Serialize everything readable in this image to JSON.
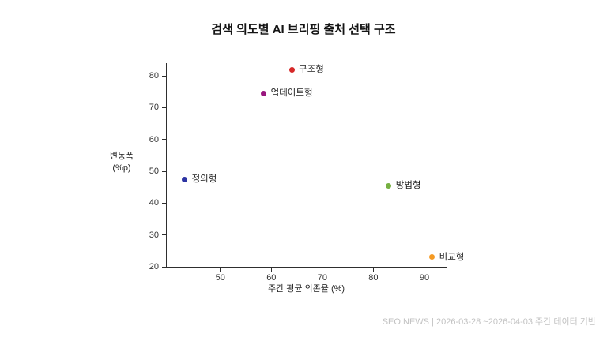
{
  "chart_data": {
    "type": "scatter",
    "title": "검색 의도별 AI 브리핑 출처 선택 구조",
    "xlabel": "주간 평균 의존율 (%)",
    "ylabel_lines": [
      "변동폭",
      "(%p)"
    ],
    "xlim": [
      39.5,
      94.5
    ],
    "ylim": [
      20,
      84
    ],
    "xticks": [
      50,
      60,
      70,
      80,
      90
    ],
    "yticks": [
      20,
      30,
      40,
      50,
      60,
      70,
      80
    ],
    "grid": false,
    "legend": "none",
    "points": [
      {
        "label": "구조형",
        "x": 64,
        "y": 82,
        "color": "#d62828"
      },
      {
        "label": "업데이트형",
        "x": 58.5,
        "y": 74.5,
        "color": "#99177e"
      },
      {
        "label": "정의형",
        "x": 43,
        "y": 47.5,
        "color": "#2d34a3"
      },
      {
        "label": "방법형",
        "x": 83,
        "y": 45.5,
        "color": "#76b041"
      },
      {
        "label": "비교형",
        "x": 91.5,
        "y": 23,
        "color": "#f59a23"
      }
    ]
  },
  "footer": {
    "source": "SEO NEWS | 2026-03-28 ~2026-04-03 주간 데이터 기반"
  }
}
